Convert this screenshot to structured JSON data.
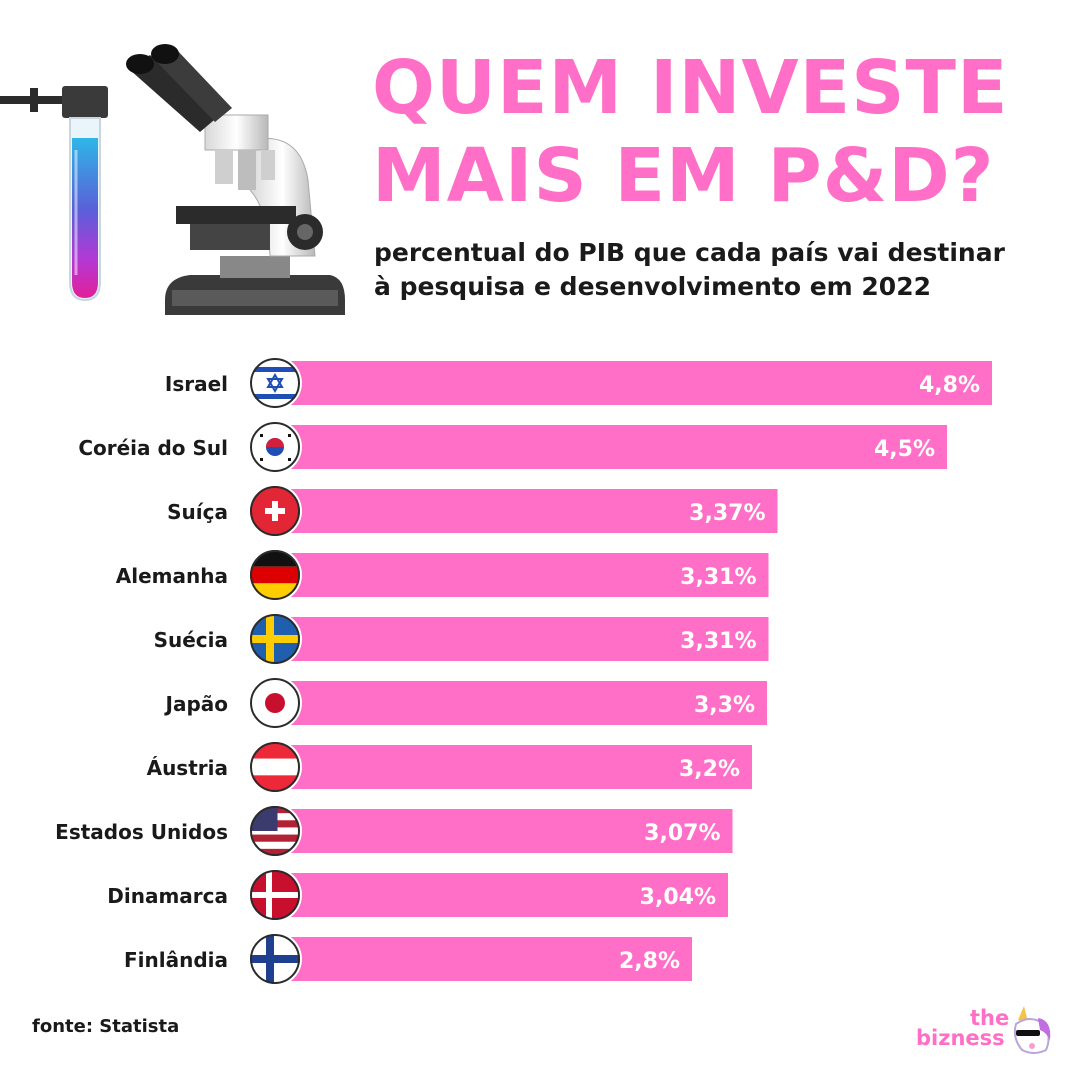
{
  "header": {
    "title_line1": "QUEM INVESTE",
    "title_line2": "MAIS EM P&D?",
    "subtitle_line1": "percentual do PIB que cada país vai destinar",
    "subtitle_line2": "à pesquisa e desenvolvimento em 2022"
  },
  "footer": {
    "source": "fonte: Statista",
    "logo_the": "the",
    "logo_bizness": "bizness"
  },
  "colors": {
    "accent": "#ff6ec7",
    "text": "#1a1a1a",
    "bar_label": "#ffffff"
  },
  "chart_data": {
    "type": "bar",
    "orientation": "horizontal",
    "categories": [
      "Israel",
      "Coréia do Sul",
      "Suíça",
      "Alemanha",
      "Suécia",
      "Japão",
      "Áustria",
      "Estados Unidos",
      "Dinamarca",
      "Finlândia"
    ],
    "values": [
      4.8,
      4.5,
      3.37,
      3.31,
      3.31,
      3.3,
      3.2,
      3.07,
      3.04,
      2.8
    ],
    "value_labels": [
      "4,8%",
      "4,5%",
      "3,37%",
      "3,31%",
      "3,31%",
      "3,3%",
      "3,2%",
      "3,07%",
      "3,04%",
      "2,8%"
    ],
    "flags": [
      "israel-flag",
      "south-korea-flag",
      "switzerland-flag",
      "germany-flag",
      "sweden-flag",
      "japan-flag",
      "austria-flag",
      "usa-flag",
      "denmark-flag",
      "finland-flag"
    ],
    "grid": false
  }
}
